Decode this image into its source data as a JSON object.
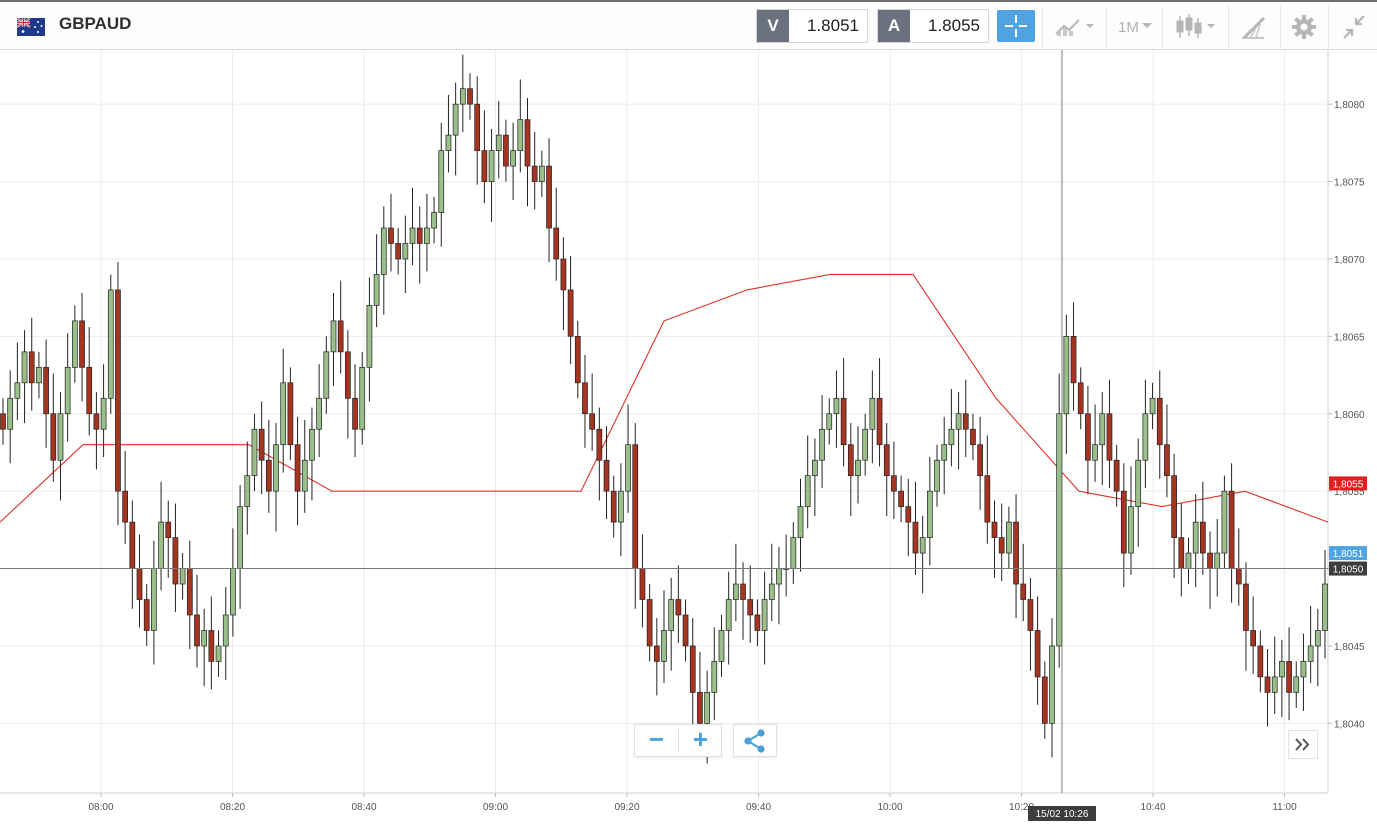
{
  "header": {
    "symbol": "GBPAUD",
    "sell_label": "V",
    "sell_price": "1.8051",
    "buy_label": "A",
    "buy_price": "1.8055",
    "timeframe": "1M"
  },
  "colors": {
    "bull": "#9bbf8a",
    "bear": "#a53421",
    "ma": "#e0312b",
    "accent": "#4fa3e0",
    "grid": "#ececec"
  },
  "icons": [
    "flag-uk-au-icon",
    "crosshair-icon",
    "chart-type-icon",
    "candlestick-icon",
    "drawing-tools-icon",
    "gear-icon",
    "collapse-icon",
    "share-icon",
    "double-chevron-right-icon"
  ],
  "crosshair": {
    "time": "15/02 10:26",
    "price": "1,8050"
  },
  "price_tags": {
    "ask": "1,8055",
    "bid": "1,8051",
    "cursor": "1,8050"
  },
  "chart_data": {
    "type": "candlestick",
    "y_range": [
      1.80355,
      1.80835
    ],
    "y_ticks": [
      "1,8040",
      "1,8045",
      "1,8050",
      "1,8055",
      "1,8060",
      "1,8065",
      "1,8070",
      "1,8075",
      "1,8080"
    ],
    "x_ticks": [
      "08:00",
      "08:20",
      "08:40",
      "09:00",
      "09:20",
      "09:40",
      "10:00",
      "10:20",
      "10:40",
      "11:00"
    ],
    "series": [
      {
        "name": "",
        "closes": [
          1.8059,
          1.8061,
          1.8062,
          1.8064,
          1.8062,
          1.8063,
          1.806,
          1.8057,
          1.806,
          1.8063,
          1.8066,
          1.8063,
          1.806,
          1.8059,
          1.8061,
          1.8068,
          1.8055,
          1.8053,
          1.805,
          1.8048,
          1.8046,
          1.805,
          1.8053,
          1.8052,
          1.8049,
          1.805,
          1.8047,
          1.8045,
          1.8046,
          1.8044,
          1.8045,
          1.8047,
          1.805,
          1.8054,
          1.8056,
          1.8059,
          1.8057,
          1.8055,
          1.8058,
          1.8062,
          1.8058,
          1.8055,
          1.8057,
          1.8059,
          1.8061,
          1.8064,
          1.8066,
          1.8064,
          1.8061,
          1.8059,
          1.8063,
          1.8067,
          1.8069,
          1.8072,
          1.8071,
          1.807,
          1.8071,
          1.8072,
          1.8071,
          1.8072,
          1.8073,
          1.8077,
          1.8078,
          1.808,
          1.8081,
          1.808,
          1.8077,
          1.8075,
          1.8077,
          1.8078,
          1.8076,
          1.8077,
          1.8079,
          1.8076,
          1.8075,
          1.8076,
          1.8072,
          1.807,
          1.8068,
          1.8065,
          1.8062,
          1.806,
          1.8059,
          1.8057,
          1.8055,
          1.8053,
          1.8055,
          1.8058,
          1.805,
          1.8048,
          1.8045,
          1.8044,
          1.8046,
          1.8048,
          1.8047,
          1.8045,
          1.8042,
          1.804,
          1.8042,
          1.8044,
          1.8046,
          1.8048,
          1.8049,
          1.8048,
          1.8047,
          1.8046,
          1.8048,
          1.8049,
          1.805,
          1.805,
          1.8052,
          1.8054,
          1.8056,
          1.8057,
          1.8059,
          1.806,
          1.8061,
          1.8058,
          1.8056,
          1.8057,
          1.8059,
          1.8061,
          1.8058,
          1.8056,
          1.8055,
          1.8054,
          1.8053,
          1.8051,
          1.8052,
          1.8055,
          1.8057,
          1.8058,
          1.8059,
          1.806,
          1.8059,
          1.8058,
          1.8056,
          1.8053,
          1.8052,
          1.8051,
          1.8053,
          1.8049,
          1.8048,
          1.8046,
          1.8043,
          1.804,
          1.8045,
          1.806,
          1.8065,
          1.8062,
          1.806,
          1.8057,
          1.8058,
          1.806,
          1.8057,
          1.8055,
          1.8051,
          1.8054,
          1.8057,
          1.806,
          1.8061,
          1.8058,
          1.8056,
          1.8052,
          1.805,
          1.8051,
          1.8053,
          1.8051,
          1.805,
          1.8051,
          1.8055,
          1.805,
          1.8049,
          1.8046,
          1.8045,
          1.8043,
          1.8042,
          1.8043,
          1.8044,
          1.8042,
          1.8043,
          1.8044,
          1.8045,
          1.8046,
          1.8049
        ]
      },
      {
        "name": "",
        "type": "line",
        "values": [
          1.8053,
          1.8058,
          1.8058,
          1.8058,
          1.8055,
          1.8055,
          1.8055,
          1.8055,
          1.8066,
          1.8068,
          1.8069,
          1.8069,
          1.8061,
          1.8055,
          1.8054,
          1.8055,
          1.8053
        ]
      }
    ]
  }
}
